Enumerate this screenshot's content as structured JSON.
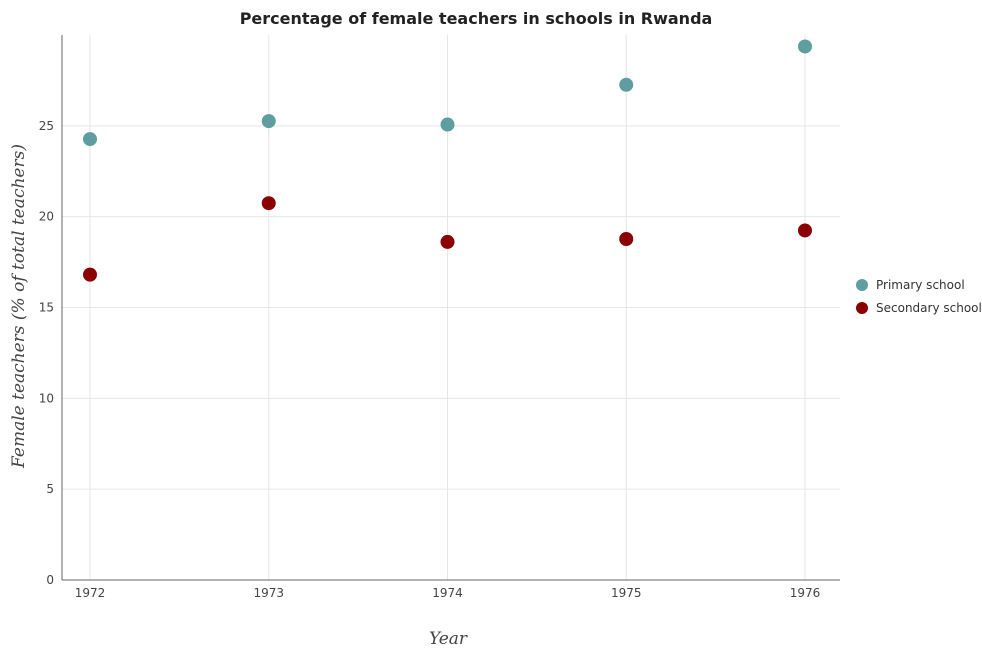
{
  "chart_data": {
    "type": "scatter",
    "title": "Percentage of female teachers in schools in Rwanda",
    "xlabel": "Year",
    "ylabel": "Female teachers (% of total teachers)",
    "categories": [
      "1972",
      "1973",
      "1974",
      "1975",
      "1976"
    ],
    "y_ticks": [
      "0",
      "5",
      "10",
      "15",
      "20",
      "25"
    ],
    "ylim": [
      0,
      30
    ],
    "grid": true,
    "legend_position": "right",
    "series": [
      {
        "name": "Primary school",
        "color": "#5f9ea0",
        "values": [
          24.27,
          25.26,
          25.07,
          27.26,
          29.37
        ]
      },
      {
        "name": "Secondary school",
        "color": "#8b0000",
        "values": [
          16.81,
          20.74,
          18.61,
          18.77,
          19.24
        ]
      }
    ]
  }
}
